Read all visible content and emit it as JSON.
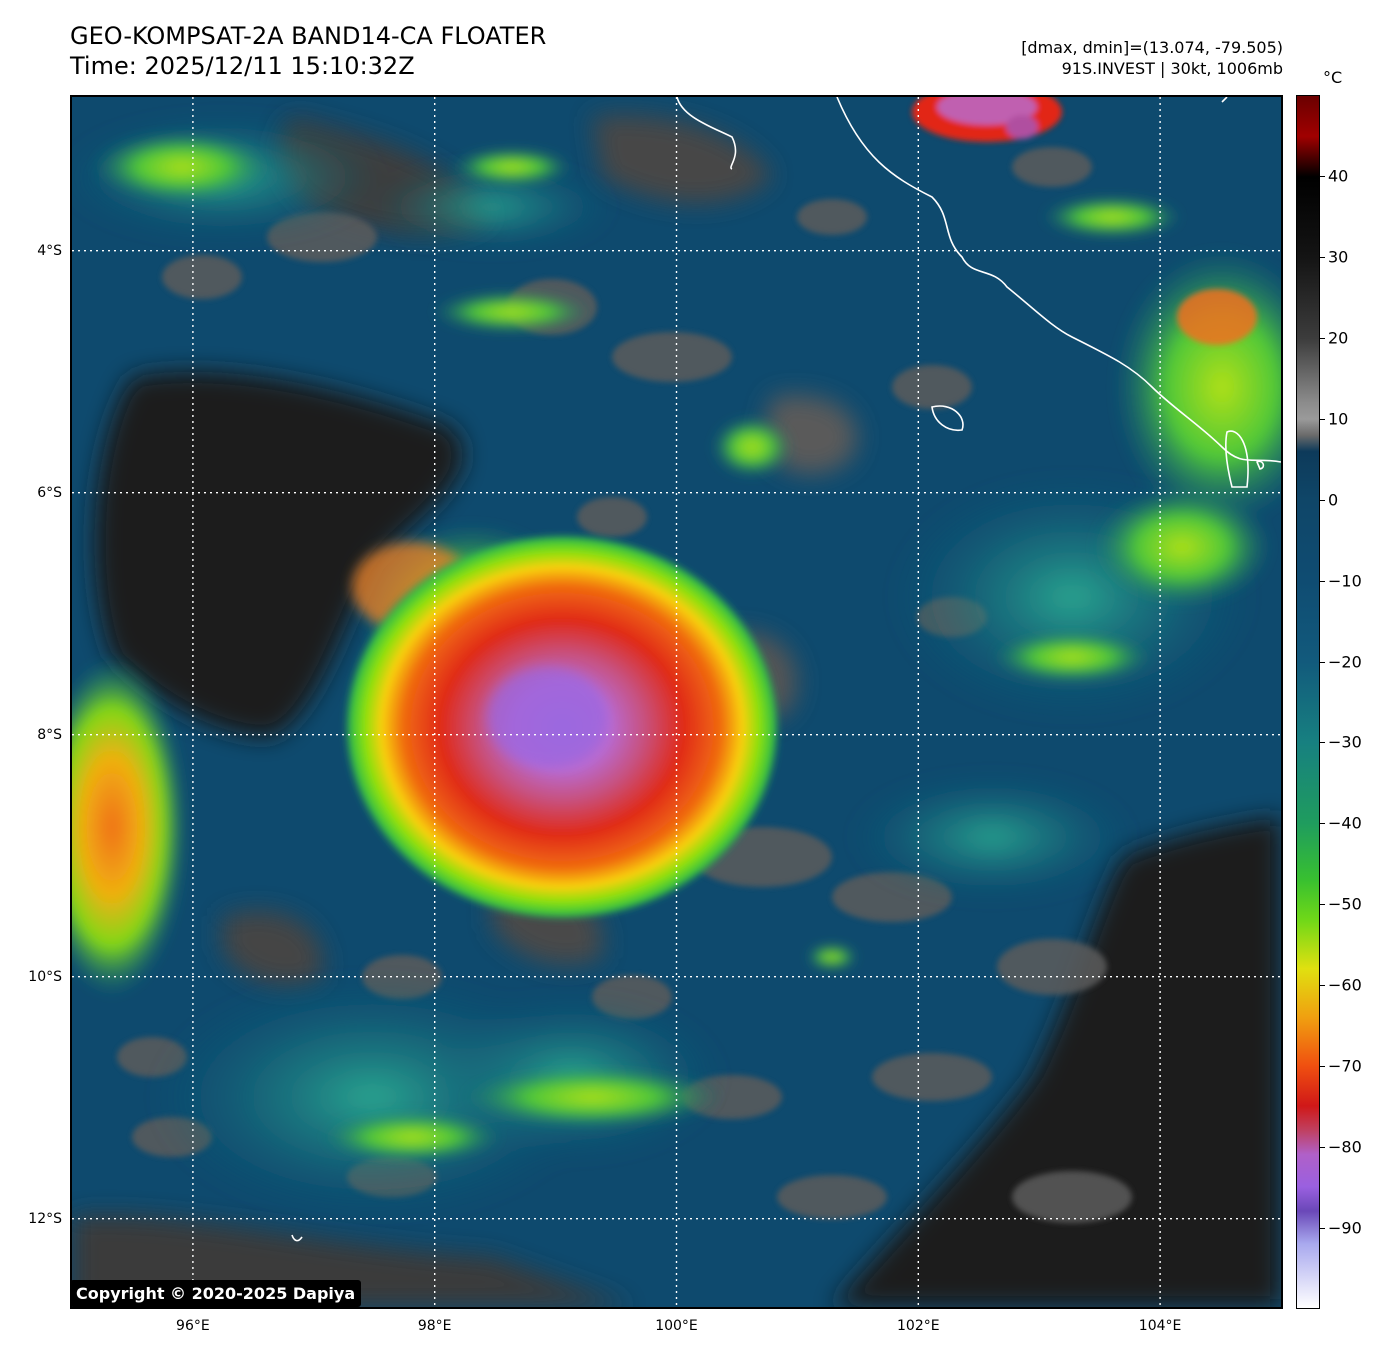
{
  "header": {
    "title_line1": "GEO-KOMPSAT-2A BAND14-CA FLOATER",
    "title_line2": "Time: 2025/12/11 15:10:32Z",
    "info_line1": "[dmax, dmin]=(13.074, -79.505)",
    "info_line2": "91S.INVEST | 30kt, 1006mb"
  },
  "map": {
    "lat_labels": [
      "4°S",
      "6°S",
      "8°S",
      "10°S",
      "12°S"
    ],
    "lon_labels": [
      "96°E",
      "98°E",
      "100°E",
      "102°E",
      "104°E"
    ],
    "lat_values": [
      -4,
      -6,
      -8,
      -10,
      -12
    ],
    "lon_values": [
      96,
      98,
      100,
      102,
      104
    ],
    "extent": {
      "lon_min": 95.0,
      "lon_max": 105.0,
      "lat_max": -2.73,
      "lat_min": -12.73
    },
    "storm_center": {
      "lon": 99.0,
      "lat": -7.9
    },
    "copyright": "Copyright © 2020-2025 Dapiya"
  },
  "colorbar": {
    "unit": "°C",
    "tick_labels": [
      "40",
      "30",
      "20",
      "10",
      "0",
      "−10",
      "−20",
      "−30",
      "−40",
      "−50",
      "−60",
      "−70",
      "−80",
      "−90"
    ],
    "tick_values": [
      40,
      30,
      20,
      10,
      0,
      -10,
      -20,
      -30,
      -40,
      -50,
      -60,
      -70,
      -80,
      -90
    ],
    "range": [
      -100,
      50
    ]
  },
  "colors": {
    "ocean_background": "#0e4a6e",
    "warm_land": "#1c1c1c",
    "coastline": "#ffffff",
    "gridline": "#ffffff"
  }
}
